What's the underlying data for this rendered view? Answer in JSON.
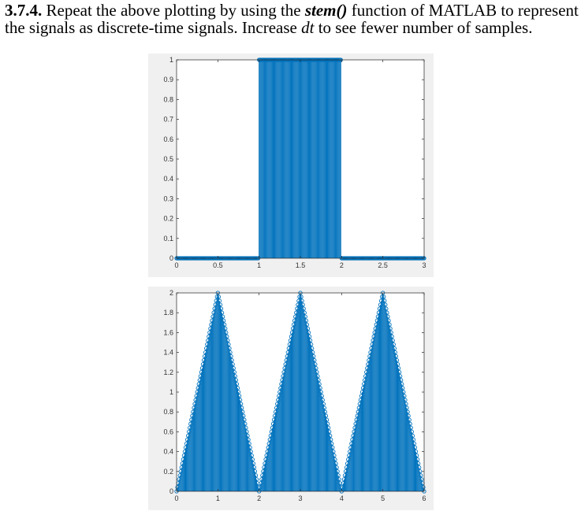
{
  "heading": {
    "number": "3.7.4.",
    "text_1": " Repeat the above plotting by using the ",
    "function": "stem()",
    "text_2": " function of MATLAB to represent the signals as discrete-time signals. Increase ",
    "variable": "dt",
    "text_3": " to see fewer number of samples."
  },
  "colors": {
    "stem": "#0072BD",
    "axes_bg": "#ffffff",
    "figure_bg": "#f0f0f0",
    "axis_line": "#262626"
  },
  "chart_data": [
    {
      "type": "stem",
      "title": "",
      "xlabel": "",
      "ylabel": "",
      "xlim": [
        0,
        3
      ],
      "ylim": [
        0,
        1
      ],
      "xticks": [
        "0",
        "0.5",
        "1",
        "1.5",
        "2",
        "2.5",
        "3"
      ],
      "yticks": [
        "0",
        "0.1",
        "0.2",
        "0.3",
        "0.4",
        "0.5",
        "0.6",
        "0.7",
        "0.8",
        "0.9",
        "1"
      ],
      "grid": false,
      "signal": "rectangular pulse",
      "dt": 0.01,
      "segments": [
        {
          "x": [
            0,
            1
          ],
          "y": 0
        },
        {
          "x": [
            1,
            2
          ],
          "y": 1
        },
        {
          "x": [
            2,
            3
          ],
          "y": 0
        }
      ]
    },
    {
      "type": "stem",
      "title": "",
      "xlabel": "",
      "ylabel": "",
      "xlim": [
        0,
        6
      ],
      "ylim": [
        0,
        2
      ],
      "xticks": [
        "0",
        "1",
        "2",
        "3",
        "4",
        "5",
        "6"
      ],
      "yticks": [
        "0",
        "0.2",
        "0.4",
        "0.6",
        "0.8",
        "1",
        "1.2",
        "1.4",
        "1.6",
        "1.8",
        "2"
      ],
      "grid": false,
      "signal": "triangular wave",
      "dt": 0.02,
      "vertices": {
        "x": [
          0,
          1,
          2,
          3,
          4,
          5,
          6
        ],
        "y": [
          0,
          2,
          0,
          2,
          0,
          2,
          0
        ]
      }
    }
  ]
}
